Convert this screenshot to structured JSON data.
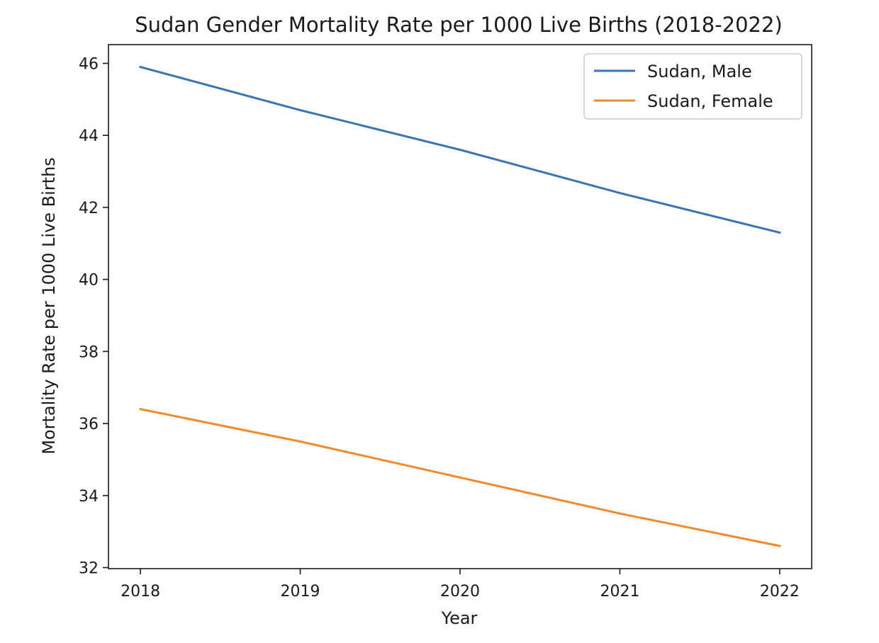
{
  "chart_data": {
    "type": "line",
    "title": "Sudan Gender Mortality Rate per 1000 Live Births (2018-2022)",
    "xlabel": "Year",
    "ylabel": "Mortality Rate per 1000 Live Births",
    "x": [
      2018,
      2019,
      2020,
      2021,
      2022
    ],
    "x_tick_labels": [
      "2018",
      "2019",
      "2020",
      "2021",
      "2022"
    ],
    "y_ticks": [
      32,
      34,
      36,
      38,
      40,
      42,
      44,
      46
    ],
    "y_tick_labels": [
      "32",
      "34",
      "36",
      "38",
      "40",
      "42",
      "44",
      "46"
    ],
    "xlim": [
      2017.8,
      2022.2
    ],
    "ylim": [
      31.97,
      46.52
    ],
    "grid": false,
    "legend_position": "top-right",
    "series": [
      {
        "name": "Sudan, Male",
        "color": "#3a75b0",
        "values": [
          45.9,
          44.7,
          43.6,
          42.4,
          41.3
        ]
      },
      {
        "name": "Sudan, Female",
        "color": "#f08a2c",
        "values": [
          36.4,
          35.5,
          34.5,
          33.5,
          32.6
        ]
      }
    ]
  }
}
